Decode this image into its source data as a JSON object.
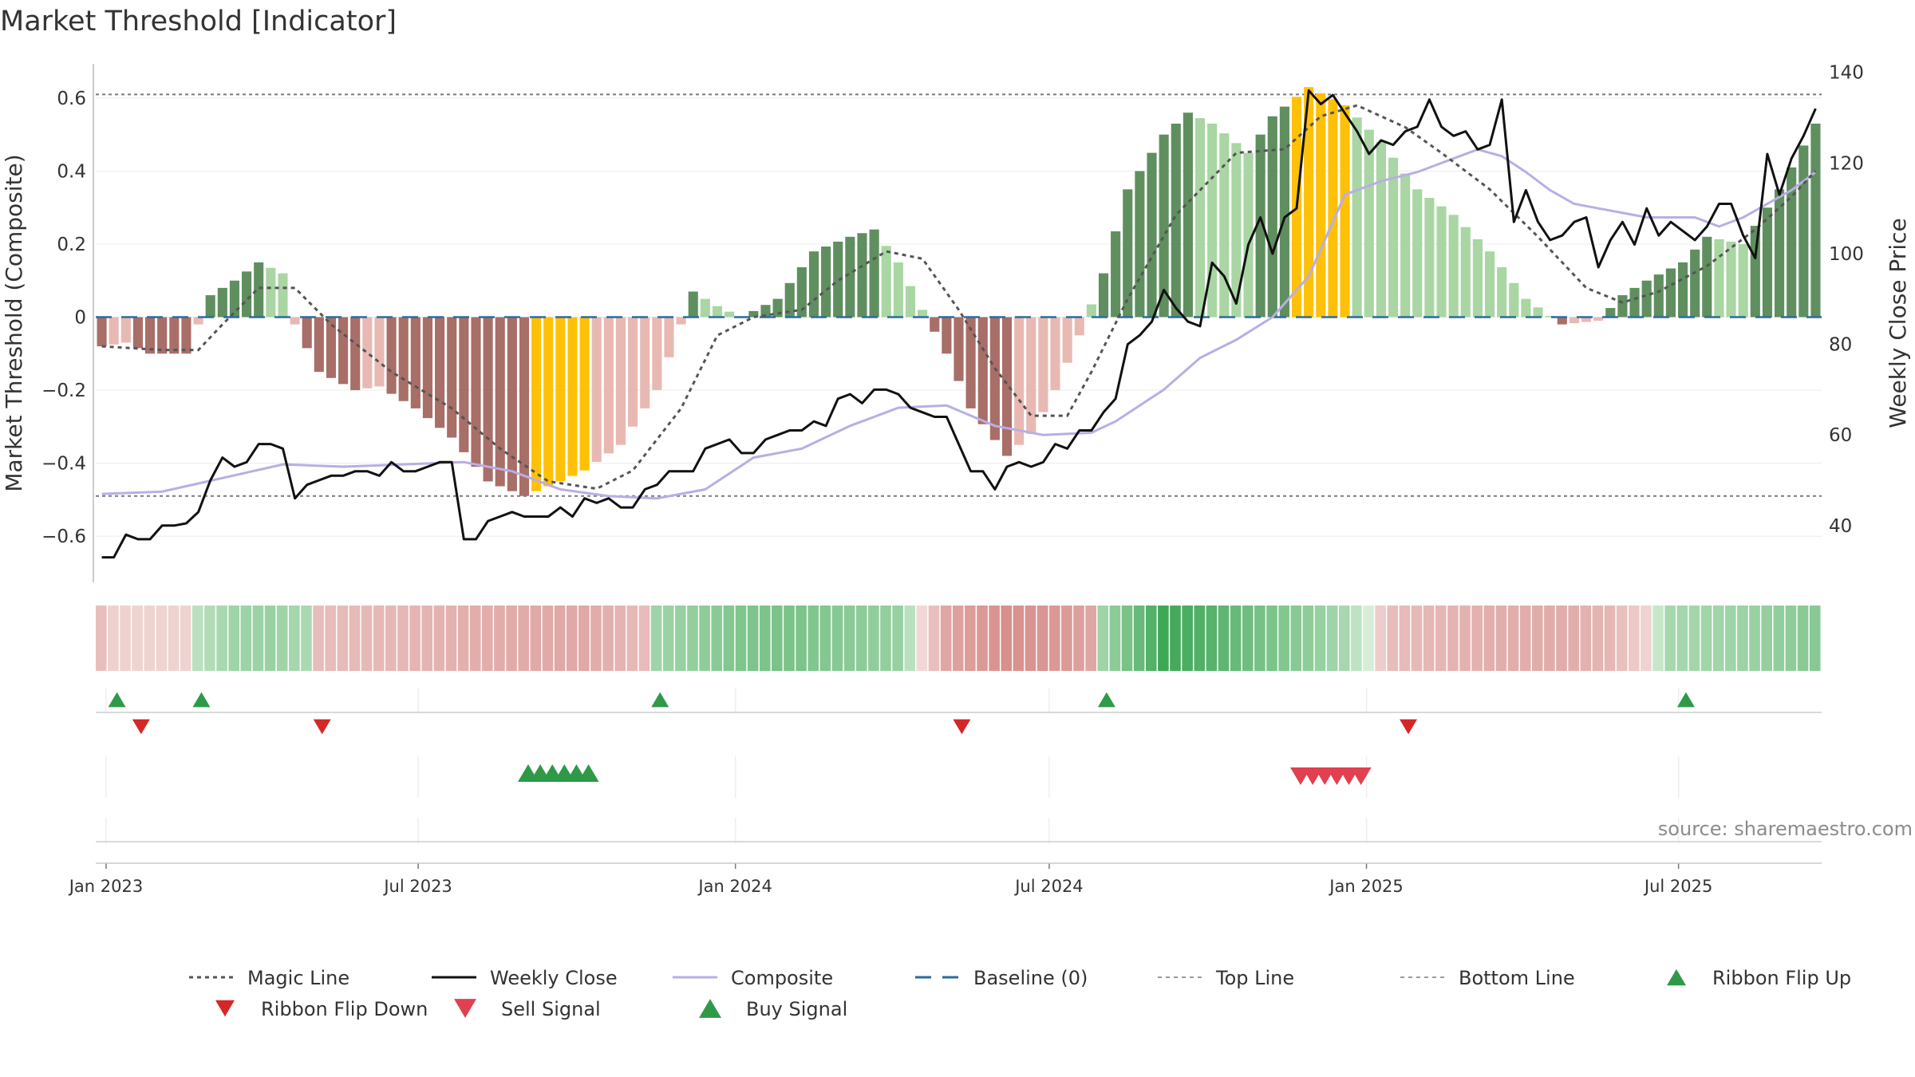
{
  "chart_data": {
    "type": "bar",
    "title": "Market Threshold [Indicator]",
    "ylabel_left": "Market Threshold (Composite)",
    "ylabel_right": "Weekly Close Price",
    "source": "source: sharemaestro.com",
    "y_left": {
      "range": [
        -0.72,
        0.72
      ],
      "ticks": [
        0.6,
        0.4,
        0.2,
        0,
        -0.2,
        -0.4,
        -0.6
      ],
      "tick_labels": [
        "0.6",
        "0.4",
        "0.2",
        "0",
        "−0.2",
        "−0.4",
        "−0.6"
      ]
    },
    "y_right": {
      "range": [
        28,
        144
      ],
      "ticks": [
        140,
        120,
        100,
        80,
        60,
        40
      ],
      "tick_labels": [
        "140",
        "120",
        "100",
        "80",
        "60",
        "40"
      ]
    },
    "x_axis": {
      "start": "2022-12-26",
      "end": "2025-09-22",
      "ticks": [
        {
          "date": "2023-01-01",
          "label": "Jan 2023"
        },
        {
          "date": "2023-07-01",
          "label": "Jul 2023"
        },
        {
          "date": "2024-01-01",
          "label": "Jan 2024"
        },
        {
          "date": "2024-07-01",
          "label": "Jul 2024"
        },
        {
          "date": "2025-01-01",
          "label": "Jan 2025"
        },
        {
          "date": "2025-07-01",
          "label": "Jul 2025"
        }
      ]
    },
    "top_line": 0.61,
    "bottom_line": -0.49,
    "baseline": 0,
    "weeks": 143,
    "histogram_keyframes": [
      [
        0,
        -0.08
      ],
      [
        2,
        -0.07
      ],
      [
        4,
        -0.1
      ],
      [
        7,
        -0.1
      ],
      [
        9,
        0.06
      ],
      [
        11,
        0.1
      ],
      [
        13,
        0.15
      ],
      [
        15,
        0.12
      ],
      [
        16,
        -0.02
      ],
      [
        18,
        -0.15
      ],
      [
        21,
        -0.2
      ],
      [
        23,
        -0.19
      ],
      [
        26,
        -0.25
      ],
      [
        29,
        -0.33
      ],
      [
        32,
        -0.45
      ],
      [
        35,
        -0.49
      ],
      [
        38,
        -0.45
      ],
      [
        40,
        -0.42
      ],
      [
        43,
        -0.35
      ],
      [
        46,
        -0.2
      ],
      [
        49,
        0.07
      ],
      [
        51,
        0.03
      ],
      [
        53,
        0.0
      ],
      [
        56,
        0.05
      ],
      [
        59,
        0.18
      ],
      [
        62,
        0.22
      ],
      [
        64,
        0.24
      ],
      [
        66,
        0.15
      ],
      [
        68,
        0.02
      ],
      [
        70,
        -0.1
      ],
      [
        72,
        -0.25
      ],
      [
        75,
        -0.38
      ],
      [
        77,
        -0.32
      ],
      [
        79,
        -0.2
      ],
      [
        81,
        -0.05
      ],
      [
        83,
        0.12
      ],
      [
        85,
        0.35
      ],
      [
        88,
        0.5
      ],
      [
        90,
        0.56
      ],
      [
        92,
        0.53
      ],
      [
        95,
        0.45
      ],
      [
        97,
        0.55
      ],
      [
        100,
        0.63
      ],
      [
        103,
        0.58
      ],
      [
        106,
        0.48
      ],
      [
        109,
        0.35
      ],
      [
        112,
        0.28
      ],
      [
        115,
        0.18
      ],
      [
        118,
        0.05
      ],
      [
        121,
        -0.02
      ],
      [
        124,
        -0.01
      ],
      [
        126,
        0.06
      ],
      [
        128,
        0.1
      ],
      [
        131,
        0.15
      ],
      [
        133,
        0.22
      ],
      [
        136,
        0.2
      ],
      [
        139,
        0.35
      ],
      [
        142,
        0.53
      ]
    ],
    "histogram_gold_weeks": [
      [
        36,
        40
      ],
      [
        99,
        103
      ]
    ],
    "magic_line": [
      [
        0,
        -0.08
      ],
      [
        5,
        -0.09
      ],
      [
        8,
        -0.09
      ],
      [
        10,
        -0.02
      ],
      [
        13,
        0.08
      ],
      [
        16,
        0.08
      ],
      [
        19,
        -0.02
      ],
      [
        24,
        -0.15
      ],
      [
        29,
        -0.25
      ],
      [
        33,
        -0.36
      ],
      [
        37,
        -0.45
      ],
      [
        41,
        -0.47
      ],
      [
        44,
        -0.42
      ],
      [
        48,
        -0.25
      ],
      [
        51,
        -0.05
      ],
      [
        54,
        0.0
      ],
      [
        58,
        0.02
      ],
      [
        61,
        0.1
      ],
      [
        65,
        0.18
      ],
      [
        68,
        0.16
      ],
      [
        71,
        0.02
      ],
      [
        74,
        -0.14
      ],
      [
        77,
        -0.27
      ],
      [
        80,
        -0.27
      ],
      [
        82,
        -0.15
      ],
      [
        85,
        0.05
      ],
      [
        89,
        0.28
      ],
      [
        94,
        0.45
      ],
      [
        98,
        0.46
      ],
      [
        101,
        0.55
      ],
      [
        104,
        0.58
      ],
      [
        108,
        0.52
      ],
      [
        111,
        0.45
      ],
      [
        115,
        0.35
      ],
      [
        119,
        0.22
      ],
      [
        123,
        0.08
      ],
      [
        126,
        0.04
      ],
      [
        129,
        0.07
      ],
      [
        133,
        0.14
      ],
      [
        137,
        0.24
      ],
      [
        140,
        0.33
      ],
      [
        142,
        0.4
      ]
    ],
    "composite": [
      [
        0,
        47
      ],
      [
        5,
        47.5
      ],
      [
        10,
        50.5
      ],
      [
        15,
        53.5
      ],
      [
        20,
        53
      ],
      [
        25,
        53.5
      ],
      [
        30,
        54
      ],
      [
        34,
        52
      ],
      [
        38,
        48
      ],
      [
        42,
        46.5
      ],
      [
        46,
        46
      ],
      [
        50,
        48
      ],
      [
        54,
        55
      ],
      [
        58,
        57
      ],
      [
        62,
        62
      ],
      [
        66,
        66
      ],
      [
        70,
        66.5
      ],
      [
        74,
        62
      ],
      [
        78,
        60
      ],
      [
        82,
        60.5
      ],
      [
        84,
        63
      ],
      [
        88,
        70
      ],
      [
        91,
        77
      ],
      [
        94,
        81
      ],
      [
        97,
        86
      ],
      [
        100,
        95
      ],
      [
        103,
        113
      ],
      [
        106,
        116
      ],
      [
        109,
        118
      ],
      [
        112,
        121
      ],
      [
        114,
        123
      ],
      [
        116,
        121.5
      ],
      [
        118,
        118
      ],
      [
        120,
        114
      ],
      [
        122,
        111
      ],
      [
        124,
        110
      ],
      [
        128,
        108
      ],
      [
        132,
        108
      ],
      [
        134,
        106
      ],
      [
        136,
        108
      ],
      [
        140,
        114
      ],
      [
        142,
        118
      ]
    ],
    "weekly_close": [
      [
        0,
        33
      ],
      [
        1,
        33
      ],
      [
        2,
        38
      ],
      [
        3,
        37
      ],
      [
        4,
        37
      ],
      [
        5,
        40
      ],
      [
        6,
        40
      ],
      [
        7,
        40.5
      ],
      [
        8,
        43
      ],
      [
        9,
        50
      ],
      [
        10,
        55
      ],
      [
        11,
        53
      ],
      [
        12,
        54
      ],
      [
        13,
        58
      ],
      [
        14,
        58
      ],
      [
        15,
        57
      ],
      [
        16,
        46
      ],
      [
        17,
        49
      ],
      [
        18,
        50
      ],
      [
        19,
        51
      ],
      [
        20,
        51
      ],
      [
        21,
        52
      ],
      [
        22,
        52
      ],
      [
        23,
        51
      ],
      [
        24,
        54
      ],
      [
        25,
        52
      ],
      [
        26,
        52
      ],
      [
        27,
        53
      ],
      [
        28,
        54
      ],
      [
        29,
        54
      ],
      [
        30,
        37
      ],
      [
        31,
        37
      ],
      [
        32,
        41
      ],
      [
        33,
        42
      ],
      [
        34,
        43
      ],
      [
        35,
        42
      ],
      [
        36,
        42
      ],
      [
        37,
        42
      ],
      [
        38,
        44
      ],
      [
        39,
        42
      ],
      [
        40,
        46
      ],
      [
        41,
        45
      ],
      [
        42,
        46
      ],
      [
        43,
        44
      ],
      [
        44,
        44
      ],
      [
        45,
        48
      ],
      [
        46,
        49
      ],
      [
        47,
        52
      ],
      [
        48,
        52
      ],
      [
        49,
        52
      ],
      [
        50,
        57
      ],
      [
        51,
        58
      ],
      [
        52,
        59
      ],
      [
        53,
        56
      ],
      [
        54,
        56
      ],
      [
        55,
        59
      ],
      [
        56,
        60
      ],
      [
        57,
        61
      ],
      [
        58,
        61
      ],
      [
        59,
        63
      ],
      [
        60,
        62
      ],
      [
        61,
        68
      ],
      [
        62,
        69
      ],
      [
        63,
        67
      ],
      [
        64,
        70
      ],
      [
        65,
        70
      ],
      [
        66,
        69
      ],
      [
        67,
        66
      ],
      [
        68,
        65
      ],
      [
        69,
        64
      ],
      [
        70,
        64
      ],
      [
        71,
        58
      ],
      [
        72,
        52
      ],
      [
        73,
        52
      ],
      [
        74,
        48
      ],
      [
        75,
        53
      ],
      [
        76,
        54
      ],
      [
        77,
        53
      ],
      [
        78,
        54
      ],
      [
        79,
        58
      ],
      [
        80,
        57
      ],
      [
        81,
        61
      ],
      [
        82,
        61
      ],
      [
        83,
        65
      ],
      [
        84,
        68
      ],
      [
        85,
        80
      ],
      [
        86,
        82
      ],
      [
        87,
        85
      ],
      [
        88,
        92
      ],
      [
        89,
        88
      ],
      [
        90,
        85
      ],
      [
        91,
        84
      ],
      [
        92,
        98
      ],
      [
        93,
        95
      ],
      [
        94,
        89
      ],
      [
        95,
        102
      ],
      [
        96,
        108
      ],
      [
        97,
        100
      ],
      [
        98,
        108
      ],
      [
        99,
        110
      ],
      [
        100,
        136
      ],
      [
        101,
        133
      ],
      [
        102,
        135
      ],
      [
        103,
        131
      ],
      [
        104,
        127
      ],
      [
        105,
        122
      ],
      [
        106,
        125
      ],
      [
        107,
        124
      ],
      [
        108,
        127
      ],
      [
        109,
        128
      ],
      [
        110,
        134
      ],
      [
        111,
        128
      ],
      [
        112,
        126
      ],
      [
        113,
        127
      ],
      [
        114,
        123
      ],
      [
        115,
        124
      ],
      [
        116,
        134
      ],
      [
        117,
        107
      ],
      [
        118,
        114
      ],
      [
        119,
        107
      ],
      [
        120,
        103
      ],
      [
        121,
        104
      ],
      [
        122,
        107
      ],
      [
        123,
        108
      ],
      [
        124,
        97
      ],
      [
        125,
        103
      ],
      [
        126,
        107
      ],
      [
        127,
        102
      ],
      [
        128,
        110
      ],
      [
        129,
        104
      ],
      [
        130,
        107
      ],
      [
        131,
        105
      ],
      [
        132,
        103
      ],
      [
        133,
        106
      ],
      [
        134,
        111
      ],
      [
        135,
        111
      ],
      [
        136,
        104
      ],
      [
        137,
        99
      ],
      [
        138,
        122
      ],
      [
        139,
        113
      ],
      [
        140,
        121
      ],
      [
        141,
        126
      ],
      [
        142,
        132
      ]
    ],
    "ribbon_keyframes": [
      [
        0,
        -0.28
      ],
      [
        1,
        -0.12
      ],
      [
        3,
        -0.1
      ],
      [
        7,
        -0.1
      ],
      [
        8,
        0.18
      ],
      [
        11,
        0.35
      ],
      [
        14,
        0.38
      ],
      [
        17,
        0.28
      ],
      [
        18,
        -0.3
      ],
      [
        25,
        -0.35
      ],
      [
        33,
        -0.45
      ],
      [
        40,
        -0.48
      ],
      [
        45,
        -0.3
      ],
      [
        46,
        0.35
      ],
      [
        50,
        0.45
      ],
      [
        53,
        0.55
      ],
      [
        57,
        0.58
      ],
      [
        62,
        0.48
      ],
      [
        66,
        0.4
      ],
      [
        70,
        -0.5
      ],
      [
        75,
        -0.7
      ],
      [
        80,
        -0.6
      ],
      [
        82,
        -0.5
      ],
      [
        83,
        0.35
      ],
      [
        86,
        0.7
      ],
      [
        88,
        0.95
      ],
      [
        92,
        0.8
      ],
      [
        96,
        0.6
      ],
      [
        100,
        0.45
      ],
      [
        103,
        0.3
      ],
      [
        107,
        -0.3
      ],
      [
        115,
        -0.42
      ],
      [
        121,
        -0.45
      ],
      [
        125,
        -0.35
      ],
      [
        128,
        -0.1
      ],
      [
        130,
        0.3
      ],
      [
        135,
        0.35
      ],
      [
        140,
        0.45
      ],
      [
        142,
        0.5
      ]
    ],
    "ribbon_flip_up_weeks": [
      0,
      7,
      45,
      82,
      130
    ],
    "ribbon_flip_down_weeks": [
      2,
      17,
      70,
      107
    ],
    "buy_signal_weeks": [
      35,
      36,
      37,
      38,
      39,
      40
    ],
    "sell_signal_weeks": [
      99,
      100,
      101,
      102,
      103,
      104
    ],
    "legend": [
      {
        "label": "Magic Line",
        "marker": "dotted-line",
        "color": "#555555"
      },
      {
        "label": "Weekly Close",
        "marker": "solid-line",
        "color": "#111111"
      },
      {
        "label": "Composite",
        "marker": "solid-line",
        "color": "#b9aee4"
      },
      {
        "label": "Baseline (0)",
        "marker": "dashed-line",
        "color": "#2b6c9e"
      },
      {
        "label": "Top Line",
        "marker": "dotted-line",
        "color": "#9a9a9a"
      },
      {
        "label": "Bottom Line",
        "marker": "dotted-line",
        "color": "#9a9a9a"
      },
      {
        "label": "Ribbon Flip Up",
        "marker": "triangle-up",
        "color": "#2e9a47"
      },
      {
        "label": "Ribbon Flip Down",
        "marker": "triangle-down",
        "color": "#d62728"
      },
      {
        "label": "Sell Signal",
        "marker": "triangle-down",
        "color": "#e0404f"
      },
      {
        "label": "Buy Signal",
        "marker": "triangle-up",
        "color": "#2e9a47"
      }
    ],
    "colors": {
      "pos_strong": "#5f8f5f",
      "pos_light": "#a9d6a3",
      "neg_strong": "#a86e68",
      "neg_light": "#e8b9b3",
      "gold": "#ffc107",
      "magic": "#555555",
      "close": "#111111",
      "composite": "#b9aee4",
      "baseline": "#2b6c9e",
      "refline": "#7a7a7a"
    }
  }
}
